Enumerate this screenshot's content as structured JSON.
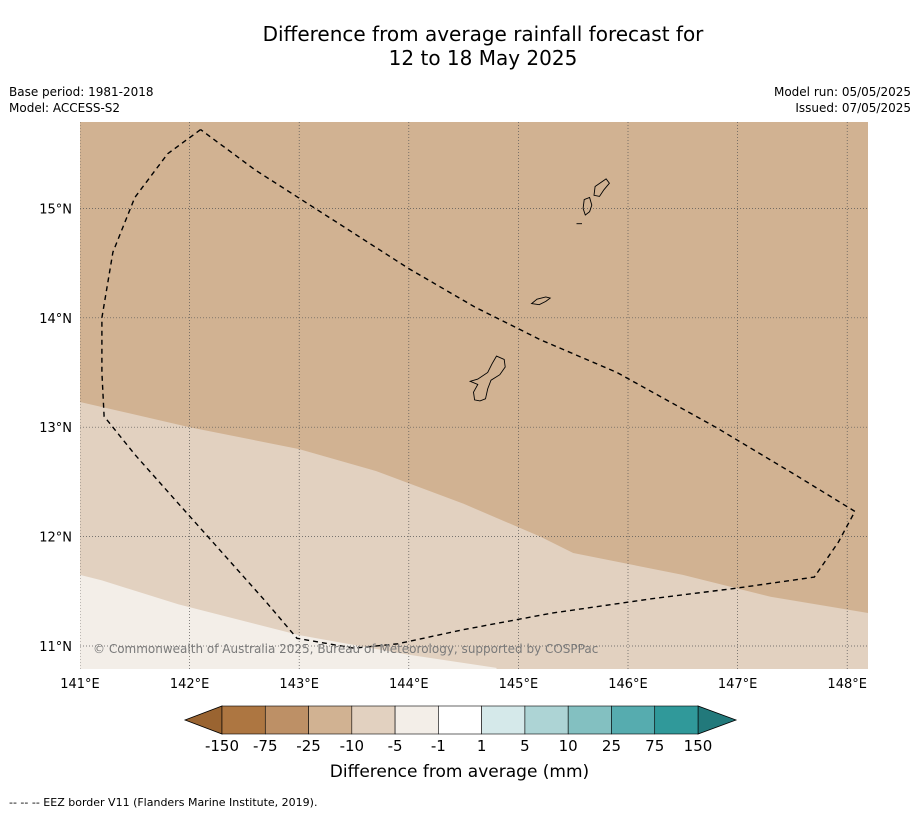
{
  "title": {
    "line1": "Difference from average rainfall forecast for",
    "line2": "12 to 18 May 2025"
  },
  "meta_left": {
    "base_period": "Base period: 1981-2018",
    "model": "Model: ACCESS-S2"
  },
  "meta_right": {
    "model_run": "Model run: 05/05/2025",
    "issued": "Issued: 07/05/2025"
  },
  "map": {
    "lon_range": [
      141.0,
      148.2
    ],
    "lat_range": [
      10.8,
      15.8
    ],
    "lon_ticks": [
      141,
      142,
      143,
      144,
      145,
      146,
      147,
      148
    ],
    "lon_tick_labels": [
      "141°E",
      "142°E",
      "143°E",
      "144°E",
      "145°E",
      "146°E",
      "147°E",
      "148°E"
    ],
    "lat_ticks": [
      15,
      14,
      13,
      12,
      11
    ],
    "lat_tick_labels": [
      "15°N",
      "14°N",
      "13°N",
      "12°N",
      "11°N"
    ],
    "grid": true,
    "copyright": "© Commonwealth of Australia 2025, Bureau of Meteorology, supported by COSPPac",
    "background_color": "#d1b292",
    "zones": [
      {
        "category": "-10 to -5",
        "color": "#e2d1c0",
        "boundary": [
          [
            141.0,
            13.23
          ],
          [
            142.0,
            13.0
          ],
          [
            143.0,
            12.8
          ],
          [
            143.7,
            12.6
          ],
          [
            144.5,
            12.3
          ],
          [
            145.2,
            12.0
          ],
          [
            145.5,
            11.85
          ],
          [
            146.5,
            11.65
          ],
          [
            147.3,
            11.45
          ],
          [
            148.2,
            11.3
          ]
        ]
      },
      {
        "category": "-5 to -1",
        "color": "#f3eee8",
        "boundary": [
          [
            141.0,
            11.65
          ],
          [
            141.2,
            11.6
          ],
          [
            141.9,
            11.38
          ],
          [
            143.0,
            11.1
          ],
          [
            144.0,
            10.92
          ],
          [
            144.8,
            10.8
          ]
        ]
      }
    ],
    "islands": [
      {
        "name": "Guam",
        "outline": [
          [
            144.8,
            13.65
          ],
          [
            144.87,
            13.62
          ],
          [
            144.88,
            13.55
          ],
          [
            144.83,
            13.48
          ],
          [
            144.75,
            13.43
          ],
          [
            144.72,
            13.35
          ],
          [
            144.7,
            13.26
          ],
          [
            144.65,
            13.24
          ],
          [
            144.6,
            13.25
          ],
          [
            144.59,
            13.32
          ],
          [
            144.63,
            13.39
          ],
          [
            144.56,
            13.42
          ],
          [
            144.63,
            13.44
          ],
          [
            144.72,
            13.5
          ],
          [
            144.76,
            13.58
          ]
        ]
      },
      {
        "name": "Rota",
        "outline": [
          [
            145.12,
            14.13
          ],
          [
            145.17,
            14.17
          ],
          [
            145.25,
            14.19
          ],
          [
            145.29,
            14.18
          ],
          [
            145.25,
            14.15
          ],
          [
            145.19,
            14.12
          ]
        ]
      },
      {
        "name": "Tinian",
        "outline": [
          [
            145.6,
            15.08
          ],
          [
            145.65,
            15.1
          ],
          [
            145.67,
            15.03
          ],
          [
            145.65,
            14.97
          ],
          [
            145.61,
            14.94
          ],
          [
            145.59,
            15.0
          ]
        ]
      },
      {
        "name": "Saipan",
        "outline": [
          [
            145.7,
            15.2
          ],
          [
            145.8,
            15.27
          ],
          [
            145.83,
            15.23
          ],
          [
            145.78,
            15.17
          ],
          [
            145.74,
            15.11
          ],
          [
            145.69,
            15.12
          ]
        ]
      },
      {
        "name": "Aguijan",
        "outline": [
          [
            145.53,
            14.86
          ],
          [
            145.58,
            14.86
          ]
        ]
      }
    ],
    "eez_border": [
      [
        142.1,
        15.72
      ],
      [
        141.8,
        15.5
      ],
      [
        141.5,
        15.1
      ],
      [
        141.3,
        14.6
      ],
      [
        141.2,
        14.0
      ],
      [
        141.2,
        13.5
      ],
      [
        141.22,
        13.1
      ],
      [
        141.5,
        12.75
      ],
      [
        141.9,
        12.3
      ],
      [
        142.3,
        11.85
      ],
      [
        142.7,
        11.4
      ],
      [
        142.98,
        11.07
      ],
      [
        143.5,
        10.98
      ],
      [
        143.9,
        11.02
      ],
      [
        144.5,
        11.15
      ],
      [
        145.3,
        11.3
      ],
      [
        146.2,
        11.43
      ],
      [
        147.0,
        11.53
      ],
      [
        147.7,
        11.63
      ],
      [
        147.92,
        11.95
      ],
      [
        148.07,
        12.23
      ],
      [
        147.5,
        12.58
      ],
      [
        146.8,
        13.0
      ],
      [
        145.9,
        13.5
      ],
      [
        145.2,
        13.8
      ],
      [
        144.6,
        14.1
      ],
      [
        144.0,
        14.45
      ],
      [
        143.3,
        14.9
      ],
      [
        142.6,
        15.35
      ],
      [
        142.1,
        15.72
      ]
    ]
  },
  "colorbar": {
    "labels": [
      "-150",
      "-75",
      "-25",
      "-10",
      "-5",
      "-1",
      "1",
      "5",
      "10",
      "25",
      "75",
      "150"
    ],
    "colors": [
      "#ad7641",
      "#bd9066",
      "#d1b292",
      "#e2d1c0",
      "#f3eee8",
      "#ffffff",
      "#d5e9ea",
      "#add4d5",
      "#83c0c1",
      "#56acaf",
      "#30999a"
    ],
    "low_extend_color": "#9a6431",
    "high_extend_color": "#22797b",
    "label": "Difference from average (mm)"
  },
  "footnote": "--  --  -- EEZ border V11 (Flanders Marine Institute, 2019)."
}
